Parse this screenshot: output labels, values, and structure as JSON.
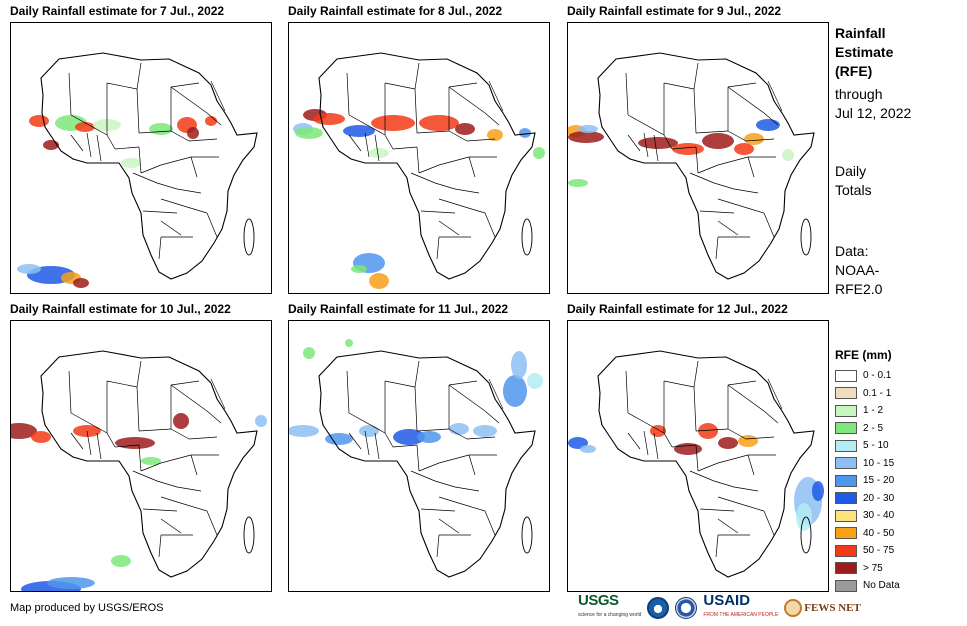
{
  "panels": [
    {
      "title": "Daily Rainfall estimate for 7 Jul., 2022"
    },
    {
      "title": "Daily Rainfall estimate for 8 Jul., 2022"
    },
    {
      "title": "Daily Rainfall estimate for 9 Jul., 2022"
    },
    {
      "title": "Daily Rainfall estimate for 10 Jul., 2022"
    },
    {
      "title": "Daily Rainfall estimate for 11 Jul., 2022"
    },
    {
      "title": "Daily Rainfall estimate for 12 Jul., 2022"
    }
  ],
  "side": {
    "title_line1": "Rainfall",
    "title_line2": "Estimate",
    "title_line3": "(RFE)",
    "through": "through",
    "date": "Jul 12, 2022",
    "daily1": "Daily",
    "daily2": "Totals",
    "data1": "Data:",
    "data2": "NOAA-",
    "data3": "RFE2.0"
  },
  "legend": {
    "title": "RFE (mm)",
    "items": [
      {
        "label": "0 - 0.1",
        "color": "#ffffff"
      },
      {
        "label": "0.1 - 1",
        "color": "#f1dcbf"
      },
      {
        "label": "1 - 2",
        "color": "#c8f5c0"
      },
      {
        "label": "2 - 5",
        "color": "#7de77a"
      },
      {
        "label": "5 - 10",
        "color": "#b4ecf5"
      },
      {
        "label": "10 - 15",
        "color": "#8cc0f2"
      },
      {
        "label": "15 - 20",
        "color": "#4f97ec"
      },
      {
        "label": "20 - 30",
        "color": "#1f5be6"
      },
      {
        "label": "30 - 40",
        "color": "#fde37b"
      },
      {
        "label": "40 - 50",
        "color": "#f8a018"
      },
      {
        "label": "50 - 75",
        "color": "#f33a16"
      },
      {
        "label": "> 75",
        "color": "#9e1c1c"
      },
      {
        "label": "No Data",
        "color": "#9a9a9a"
      }
    ]
  },
  "credit": "Map produced by USGS/EROS",
  "logos": {
    "usgs": "USGS",
    "usgs_tag": "science for a changing world",
    "usaid": "USAID",
    "usaid_tag": "FROM THE AMERICAN PEOPLE",
    "fews": "FEWS NET"
  }
}
